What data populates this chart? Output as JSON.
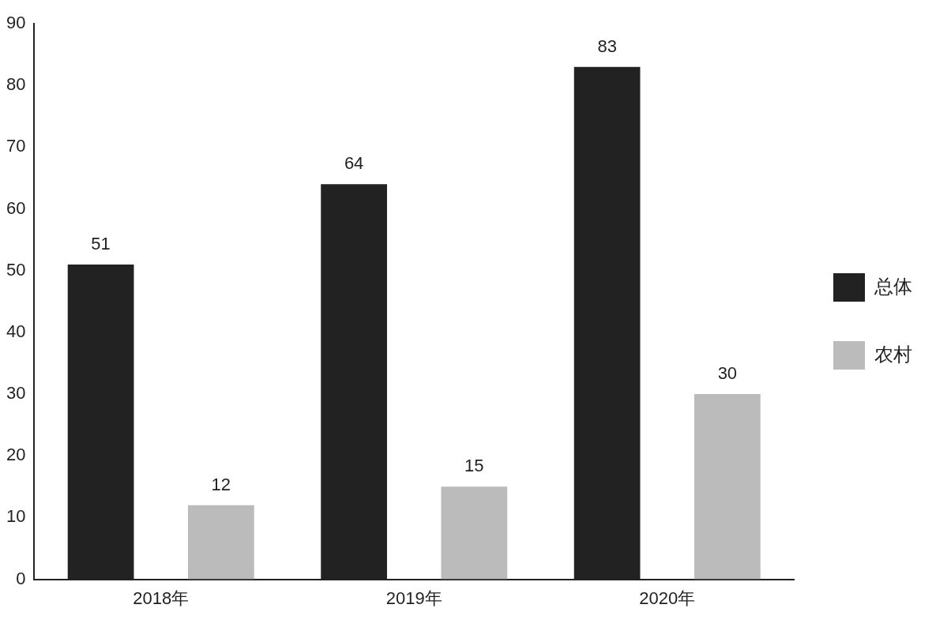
{
  "chart_data": {
    "type": "bar",
    "categories": [
      "2018年",
      "2019年",
      "2020年"
    ],
    "series": [
      {
        "name": "总体",
        "color": "#222222",
        "values": [
          51,
          64,
          83
        ]
      },
      {
        "name": "农村",
        "color": "#bbbbbb",
        "values": [
          12,
          15,
          30
        ]
      }
    ],
    "ylim": [
      0,
      90
    ],
    "yticks": [
      0,
      10,
      20,
      30,
      40,
      50,
      60,
      70,
      80,
      90
    ],
    "grid": false,
    "legend": "right",
    "data_labels": true
  }
}
